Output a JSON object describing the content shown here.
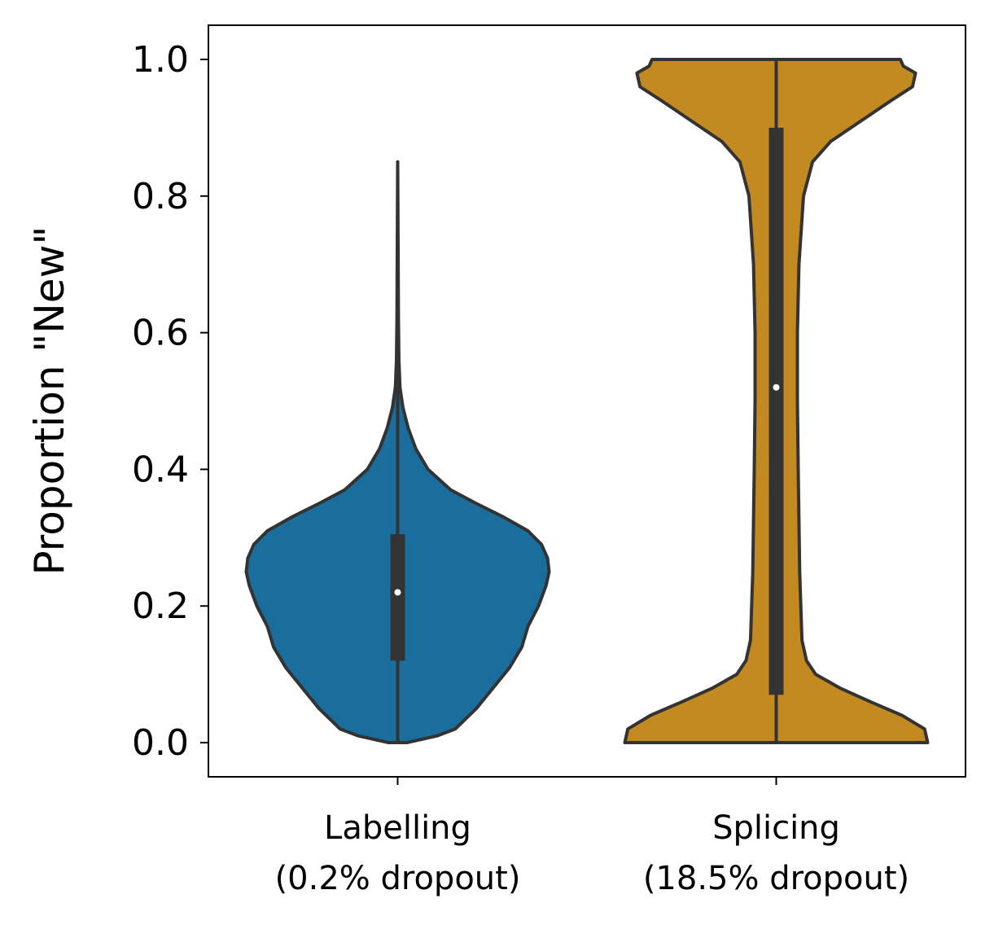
{
  "chart_data": {
    "type": "violin",
    "title": "",
    "xlabel": "",
    "ylabel": "Proportion \"New\"",
    "ylim": [
      -0.05,
      1.05
    ],
    "yticks": [
      "0.0",
      "0.2",
      "0.4",
      "0.6",
      "0.8",
      "1.0"
    ],
    "grid": false,
    "categories": [
      {
        "line1": "Labelling",
        "line2": "(0.2% dropout)"
      },
      {
        "line1": "Splicing",
        "line2": "(18.5% dropout)"
      }
    ],
    "series": [
      {
        "color": "#1a6e9e",
        "median": 0.22,
        "q1": 0.12,
        "q3": 0.305,
        "min": 0.0,
        "max": 0.85,
        "density": [
          [
            0.0,
            0.06
          ],
          [
            0.01,
            0.26
          ],
          [
            0.02,
            0.38
          ],
          [
            0.05,
            0.52
          ],
          [
            0.08,
            0.63
          ],
          [
            0.11,
            0.74
          ],
          [
            0.14,
            0.82
          ],
          [
            0.17,
            0.86
          ],
          [
            0.2,
            0.93
          ],
          [
            0.23,
            0.98
          ],
          [
            0.25,
            1.0
          ],
          [
            0.27,
            0.99
          ],
          [
            0.29,
            0.95
          ],
          [
            0.31,
            0.86
          ],
          [
            0.33,
            0.7
          ],
          [
            0.35,
            0.52
          ],
          [
            0.37,
            0.35
          ],
          [
            0.4,
            0.2
          ],
          [
            0.43,
            0.12
          ],
          [
            0.46,
            0.07
          ],
          [
            0.49,
            0.035
          ],
          [
            0.52,
            0.015
          ],
          [
            0.56,
            0.008
          ],
          [
            0.62,
            0.005
          ],
          [
            0.7,
            0.003
          ],
          [
            0.85,
            0.0
          ]
        ]
      },
      {
        "color": "#c48a22",
        "median": 0.52,
        "q1": 0.07,
        "q3": 0.9,
        "min": 0.0,
        "max": 1.0,
        "density": [
          [
            0.0,
            1.0
          ],
          [
            0.02,
            0.98
          ],
          [
            0.04,
            0.83
          ],
          [
            0.06,
            0.62
          ],
          [
            0.08,
            0.42
          ],
          [
            0.1,
            0.26
          ],
          [
            0.12,
            0.2
          ],
          [
            0.15,
            0.17
          ],
          [
            0.25,
            0.155
          ],
          [
            0.4,
            0.145
          ],
          [
            0.5,
            0.14
          ],
          [
            0.6,
            0.14
          ],
          [
            0.7,
            0.15
          ],
          [
            0.8,
            0.18
          ],
          [
            0.85,
            0.24
          ],
          [
            0.88,
            0.36
          ],
          [
            0.91,
            0.56
          ],
          [
            0.94,
            0.76
          ],
          [
            0.96,
            0.9
          ],
          [
            0.98,
            0.92
          ],
          [
            0.99,
            0.84
          ],
          [
            1.0,
            0.82
          ]
        ]
      }
    ]
  }
}
